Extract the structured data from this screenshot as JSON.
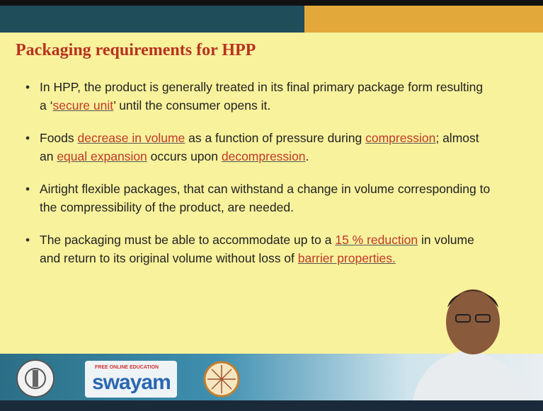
{
  "header": {
    "title": "Packaging requirements for HPP"
  },
  "bullets": [
    {
      "segments": [
        {
          "text": "In HPP, the product is generally treated in its final primary package form resulting a ‘",
          "color": "#222222"
        },
        {
          "text": "secure unit",
          "color": "#c0392b"
        },
        {
          "text": "’ until the consumer opens it.",
          "color": "#222222"
        }
      ]
    },
    {
      "segments": [
        {
          "text": "Foods ",
          "color": "#222222"
        },
        {
          "text": "decrease in volume",
          "color": "#c0392b"
        },
        {
          "text": " as a function of pressure during ",
          "color": "#222222"
        },
        {
          "text": "compression",
          "color": "#c0392b"
        },
        {
          "text": "; almost an ",
          "color": "#222222"
        },
        {
          "text": "equal expansion",
          "color": "#c0392b"
        },
        {
          "text": " occurs upon ",
          "color": "#222222"
        },
        {
          "text": "decompression",
          "color": "#c0392b"
        },
        {
          "text": ".",
          "color": "#222222"
        }
      ]
    },
    {
      "segments": [
        {
          "text": "Airtight flexible packages, that can withstand a change in volume corresponding to the compressibility of the product, are needed.",
          "color": "#222222"
        }
      ]
    },
    {
      "segments": [
        {
          "text": "The packaging must be able to accommodate up to a ",
          "color": "#222222"
        },
        {
          "text": "15 % reduction",
          "color": "#c0392b"
        },
        {
          "text": " in volume and return to its original volume without loss of ",
          "color": "#222222"
        },
        {
          "text": "barrier properties.",
          "color": "#c0392b"
        }
      ]
    }
  ],
  "footer": {
    "logo_subtitle": "FREE ONLINE EDUCATION",
    "logo": "swayam"
  }
}
